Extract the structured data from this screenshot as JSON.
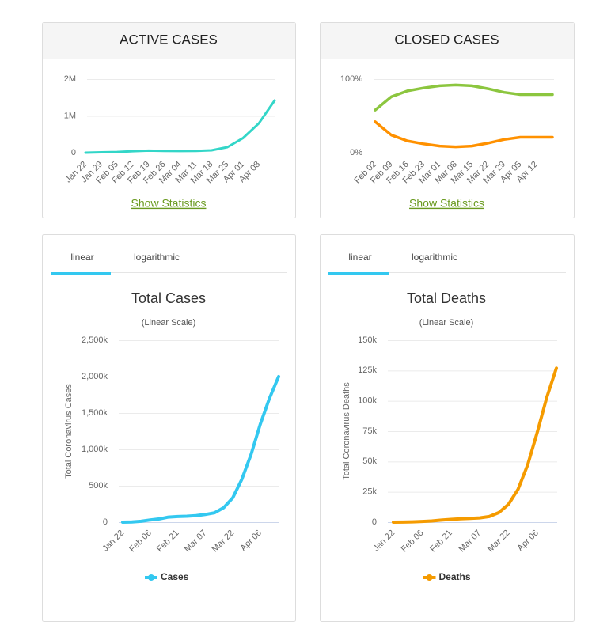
{
  "chart_data": [
    {
      "type": "line",
      "title": "ACTIVE CASES",
      "link": "Show Statistics",
      "categories": [
        "Jan 22",
        "Jan 29",
        "Feb 05",
        "Feb 12",
        "Feb 19",
        "Feb 26",
        "Mar 04",
        "Mar 11",
        "Mar 18",
        "Mar 25",
        "Apr 01",
        "Apr 08",
        null
      ],
      "series": [
        {
          "color": "#33d6c8",
          "values": [
            0,
            10000,
            20000,
            40000,
            55000,
            50000,
            45000,
            48000,
            65000,
            150000,
            400000,
            800000,
            1420000
          ]
        }
      ],
      "ylim": [
        0,
        2000000
      ],
      "yticks": [
        0,
        {
          "value": 1000000,
          "label": "1M"
        },
        {
          "value": 2000000,
          "label": "2M"
        }
      ]
    },
    {
      "type": "line",
      "title": "CLOSED CASES",
      "link": "Show Statistics",
      "categories": [
        "Feb 02",
        "Feb 09",
        "Feb 16",
        "Feb 23",
        "Mar 01",
        "Mar 08",
        "Mar 15",
        "Mar 22",
        "Mar 29",
        "Apr 05",
        "Apr 12",
        null
      ],
      "series": [
        {
          "color": "#8cc63f",
          "values": [
            58,
            76,
            84,
            88,
            91,
            92,
            91,
            87,
            82,
            79,
            79,
            79
          ]
        },
        {
          "color": "#ff9100",
          "values": [
            42,
            24,
            16,
            12,
            9,
            8,
            9,
            13,
            18,
            21,
            21,
            21
          ]
        }
      ],
      "ylim": [
        0,
        100
      ],
      "yticks": [
        {
          "value": 0,
          "label": "0%"
        },
        {
          "value": 100,
          "label": "100%"
        }
      ]
    },
    {
      "type": "line",
      "tabs": [
        "linear",
        "logarithmic"
      ],
      "title": "Total Cases",
      "subtitle": "(Linear Scale)",
      "ylabel": "Total Coronavirus Cases",
      "categories": [
        "Jan 22",
        null,
        null,
        "Feb 06",
        null,
        null,
        "Feb 21",
        null,
        null,
        "Mar 07",
        null,
        null,
        "Mar 22",
        null,
        null,
        "Apr 06",
        null,
        null
      ],
      "series": [
        {
          "name": "Cases",
          "color": "#33c8f0",
          "values": [
            500,
            3000,
            12000,
            30000,
            45000,
            70000,
            77000,
            82000,
            90000,
            105000,
            128000,
            198000,
            335000,
            590000,
            930000,
            1345000,
            1700000,
            2000000
          ]
        }
      ],
      "ylim": [
        0,
        2500000
      ],
      "yticks": [
        0,
        {
          "value": 500000,
          "label": "500k"
        },
        {
          "value": 1000000,
          "label": "1,000k"
        },
        {
          "value": 1500000,
          "label": "1,500k"
        },
        {
          "value": 2000000,
          "label": "2,000k"
        },
        {
          "value": 2500000,
          "label": "2,500k"
        }
      ]
    },
    {
      "type": "line",
      "tabs": [
        "linear",
        "logarithmic"
      ],
      "title": "Total Deaths",
      "subtitle": "(Linear Scale)",
      "ylabel": "Total Coronavirus Deaths",
      "categories": [
        "Jan 22",
        null,
        null,
        "Feb 06",
        null,
        null,
        "Feb 21",
        null,
        null,
        "Mar 07",
        null,
        null,
        "Mar 22",
        null,
        null,
        "Apr 06",
        null,
        null
      ],
      "series": [
        {
          "name": "Deaths",
          "color": "#f59b00",
          "values": [
            17,
            80,
            260,
            560,
            1000,
            1700,
            2250,
            2800,
            3100,
            3550,
            4600,
            7900,
            14700,
            27000,
            47000,
            74000,
            103000,
            127000
          ]
        }
      ],
      "ylim": [
        0,
        150000
      ],
      "yticks": [
        0,
        {
          "value": 25000,
          "label": "25k"
        },
        {
          "value": 50000,
          "label": "50k"
        },
        {
          "value": 75000,
          "label": "75k"
        },
        {
          "value": 100000,
          "label": "100k"
        },
        {
          "value": 125000,
          "label": "125k"
        },
        {
          "value": 150000,
          "label": "150k"
        }
      ]
    }
  ]
}
